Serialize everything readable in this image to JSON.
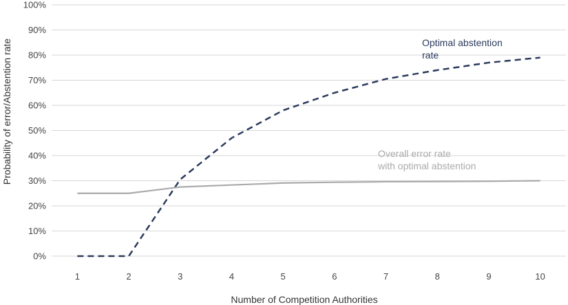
{
  "chart_data": {
    "type": "line",
    "title": "",
    "xlabel": "Number of Competition Authorities",
    "ylabel": "Probability of error/Abstention rate",
    "x": [
      1,
      2,
      3,
      4,
      5,
      6,
      7,
      8,
      9,
      10
    ],
    "xlim": [
      0.5,
      10.5
    ],
    "ylim": [
      0,
      100
    ],
    "y_ticks": [
      "0%",
      "10%",
      "20%",
      "30%",
      "40%",
      "50%",
      "60%",
      "70%",
      "80%",
      "90%",
      "100%"
    ],
    "grid": "horizontal",
    "legend": "none",
    "series": [
      {
        "name": "Optimal abstention rate",
        "values": [
          0,
          0,
          30.5,
          47,
          58,
          65,
          70.5,
          74,
          77,
          79
        ],
        "color": "#2a3a5c",
        "style": "dashed"
      },
      {
        "name": "Overall error rate with optimal abstention",
        "values": [
          25,
          25,
          27.5,
          28.3,
          29.1,
          29.4,
          29.6,
          29.7,
          29.8,
          30
        ],
        "color": "#aaaaaa",
        "style": "solid"
      }
    ],
    "annotations": [
      {
        "series": 0,
        "lines": [
          "Optimal abstention",
          "rate"
        ]
      },
      {
        "series": 1,
        "lines": [
          "Overall error rate",
          "with optimal abstention"
        ]
      }
    ]
  }
}
